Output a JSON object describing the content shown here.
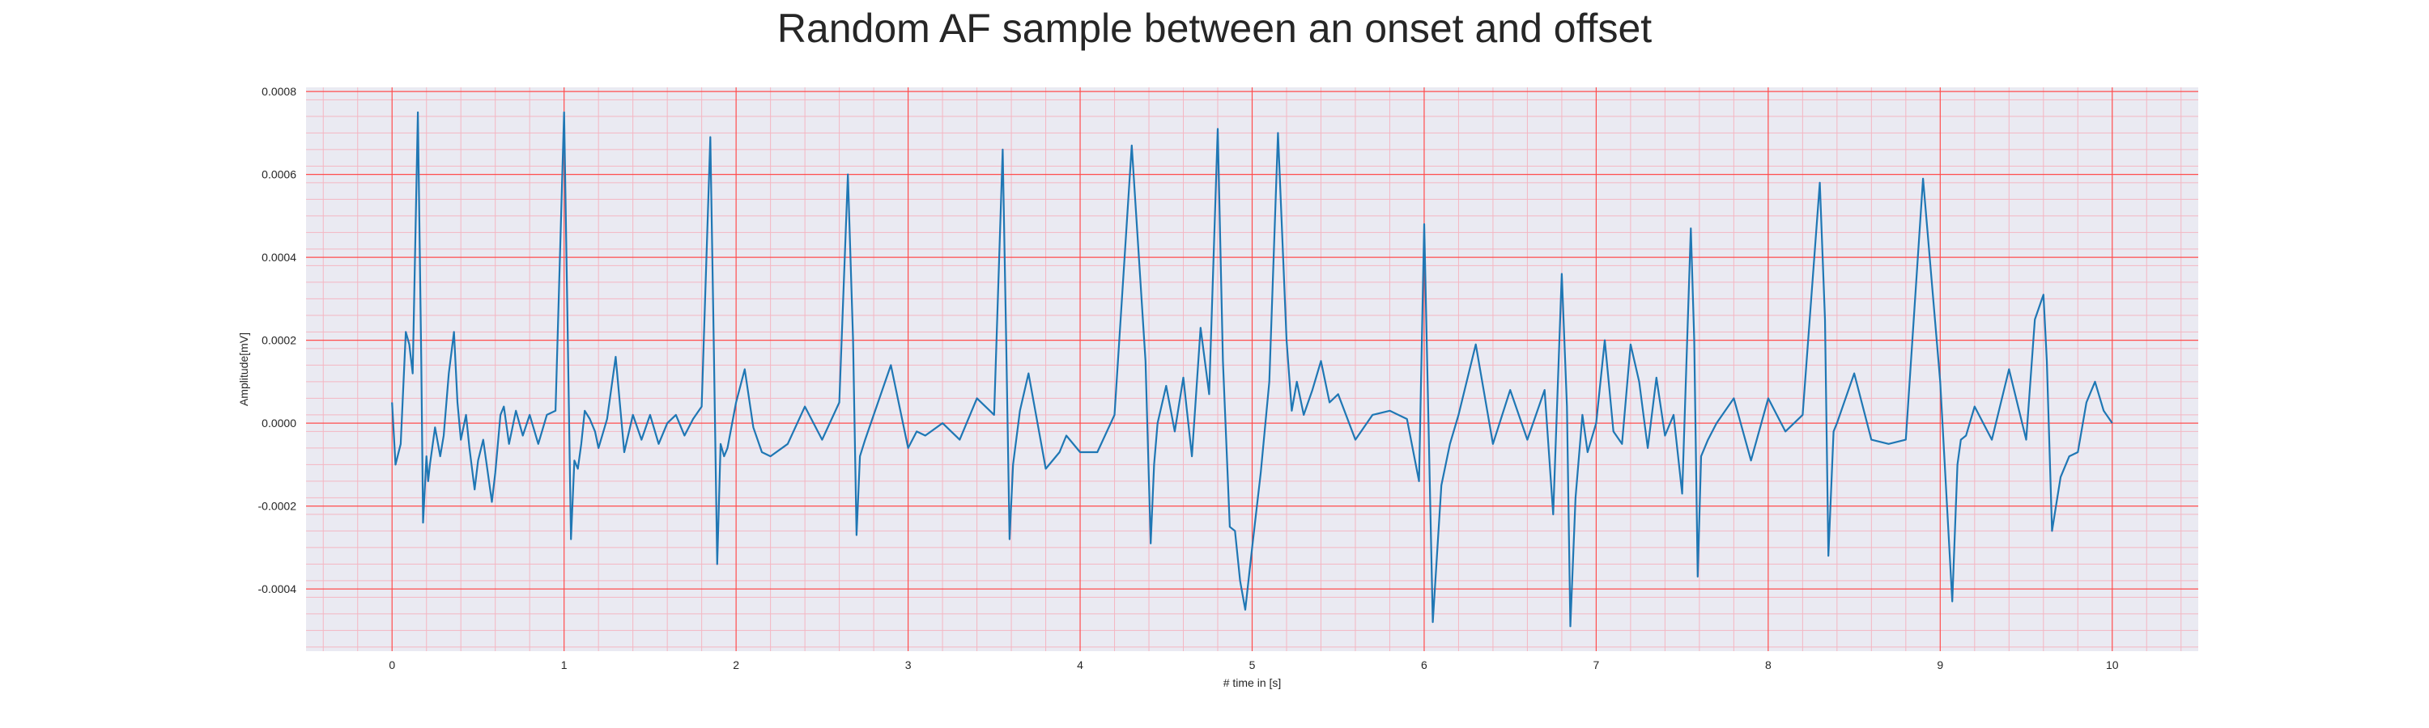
{
  "chart_data": {
    "type": "line",
    "title": "Random AF sample between an onset and offset",
    "xlabel": "# time in [s]",
    "ylabel": "Amplitude[mV]",
    "xlim": [
      -0.5,
      10.5
    ],
    "ylim": [
      -0.00055,
      0.00081
    ],
    "x_ticks": [
      0,
      1,
      2,
      3,
      4,
      5,
      6,
      7,
      8,
      9,
      10
    ],
    "x_tick_labels": [
      "0",
      "1",
      "2",
      "3",
      "4",
      "5",
      "6",
      "7",
      "8",
      "9",
      "10"
    ],
    "y_ticks": [
      -0.0004,
      -0.0002,
      0.0,
      0.0002,
      0.0004,
      0.0006,
      0.0008
    ],
    "y_tick_labels": [
      "-0.0004",
      "-0.0002",
      "0.0000",
      "0.0002",
      "0.0004",
      "0.0006",
      "0.0008"
    ],
    "grid": true,
    "background_color": "#eaeaf2",
    "major_grid_color": "#ff4d4d",
    "minor_grid_color": "#f4b6c2",
    "line_color": "#1f77b4",
    "series": [
      {
        "x": [
          0,
          0.02,
          0.05,
          0.08,
          0.1,
          0.12,
          0.15,
          0.17,
          0.18,
          0.2,
          0.21,
          0.22,
          0.25,
          0.28,
          0.3,
          0.33,
          0.36,
          0.38,
          0.4,
          0.43,
          0.45,
          0.48,
          0.5,
          0.53,
          0.55,
          0.58,
          0.6,
          0.63,
          0.65,
          0.68,
          0.72,
          0.76,
          0.8,
          0.85,
          0.9,
          0.95,
          1.0,
          1.02,
          1.04,
          1.06,
          1.08,
          1.1,
          1.12,
          1.15,
          1.18,
          1.2,
          1.25,
          1.3,
          1.35,
          1.4,
          1.45,
          1.5,
          1.55,
          1.6,
          1.65,
          1.7,
          1.75,
          1.8,
          1.85,
          1.87,
          1.89,
          1.91,
          1.93,
          1.95,
          2.0,
          2.05,
          2.1,
          2.15,
          2.2,
          2.3,
          2.4,
          2.5,
          2.6,
          2.65,
          2.68,
          2.7,
          2.72,
          2.75,
          2.8,
          2.9,
          3.0,
          3.05,
          3.1,
          3.2,
          3.3,
          3.4,
          3.5,
          3.55,
          3.57,
          3.59,
          3.61,
          3.65,
          3.7,
          3.8,
          3.88,
          3.92,
          4.0,
          4.1,
          4.2,
          4.3,
          4.38,
          4.41,
          4.43,
          4.45,
          4.5,
          4.55,
          4.6,
          4.65,
          4.7,
          4.75,
          4.8,
          4.83,
          4.87,
          4.9,
          4.93,
          4.96,
          5.0,
          5.05,
          5.1,
          5.15,
          5.2,
          5.23,
          5.26,
          5.3,
          5.35,
          5.4,
          5.45,
          5.5,
          5.6,
          5.7,
          5.8,
          5.9,
          5.97,
          6.0,
          6.02,
          6.05,
          6.1,
          6.15,
          6.2,
          6.3,
          6.4,
          6.5,
          6.6,
          6.7,
          6.75,
          6.8,
          6.83,
          6.85,
          6.88,
          6.92,
          6.95,
          7.0,
          7.05,
          7.1,
          7.15,
          7.2,
          7.25,
          7.3,
          7.35,
          7.4,
          7.45,
          7.5,
          7.55,
          7.57,
          7.59,
          7.61,
          7.65,
          7.7,
          7.8,
          7.9,
          8.0,
          8.1,
          8.2,
          8.3,
          8.33,
          8.35,
          8.38,
          8.4,
          8.5,
          8.6,
          8.7,
          8.8,
          8.9,
          9.0,
          9.07,
          9.1,
          9.12,
          9.15,
          9.2,
          9.3,
          9.4,
          9.5,
          9.55,
          9.6,
          9.62,
          9.65,
          9.7,
          9.75,
          9.8,
          9.85,
          9.9,
          9.95,
          10.0
        ],
        "y": [
          5e-05,
          -0.0001,
          -5e-05,
          0.00022,
          0.00019,
          0.00012,
          0.00075,
          0.00015,
          -0.00024,
          -8e-05,
          -0.00014,
          -0.0001,
          -1e-05,
          -8e-05,
          -3e-05,
          0.00012,
          0.00022,
          5e-05,
          -4e-05,
          2e-05,
          -6e-05,
          -0.00016,
          -9e-05,
          -4e-05,
          -0.0001,
          -0.00019,
          -0.00012,
          2e-05,
          4e-05,
          -5e-05,
          3e-05,
          -3e-05,
          2e-05,
          -5e-05,
          2e-05,
          3e-05,
          0.00075,
          0.00025,
          -0.00028,
          -9e-05,
          -0.00011,
          -5e-05,
          3e-05,
          1e-05,
          -2e-05,
          -6e-05,
          1e-05,
          0.00016,
          -7e-05,
          2e-05,
          -4e-05,
          2e-05,
          -5e-05,
          0.0,
          2e-05,
          -3e-05,
          1e-05,
          4e-05,
          0.00069,
          0.0002,
          -0.00034,
          -5e-05,
          -8e-05,
          -6e-05,
          5e-05,
          0.00013,
          -1e-05,
          -7e-05,
          -8e-05,
          -5e-05,
          4e-05,
          -4e-05,
          5e-05,
          0.0006,
          0.0002,
          -0.00027,
          -8e-05,
          -4e-05,
          2e-05,
          0.00014,
          -6e-05,
          -2e-05,
          -3e-05,
          0.0,
          -4e-05,
          6e-05,
          2e-05,
          0.00066,
          0.0002,
          -0.00028,
          -0.0001,
          3e-05,
          0.00012,
          -0.00011,
          -7e-05,
          -3e-05,
          -7e-05,
          -7e-05,
          2e-05,
          0.00067,
          0.00015,
          -0.00029,
          -0.0001,
          0.0,
          9e-05,
          -2e-05,
          0.00011,
          -8e-05,
          0.00023,
          7e-05,
          0.00071,
          0.00015,
          -0.00025,
          -0.00026,
          -0.00038,
          -0.00045,
          -0.0003,
          -0.00012,
          0.0001,
          0.0007,
          0.0002,
          3e-05,
          0.0001,
          2e-05,
          8e-05,
          0.00015,
          5e-05,
          7e-05,
          -4e-05,
          2e-05,
          3e-05,
          1e-05,
          -0.00014,
          0.00048,
          0.0001,
          -0.00048,
          -0.00015,
          -5e-05,
          2e-05,
          0.00019,
          -5e-05,
          8e-05,
          -4e-05,
          8e-05,
          -0.00022,
          0.00036,
          4e-05,
          -0.00049,
          -0.00018,
          2e-05,
          -7e-05,
          0.0,
          0.0002,
          -2e-05,
          -5e-05,
          0.00019,
          0.0001,
          -6e-05,
          0.00011,
          -3e-05,
          2e-05,
          -0.00017,
          0.00047,
          0.0002,
          -0.00037,
          -8e-05,
          -4e-05,
          0.0,
          6e-05,
          -9e-05,
          6e-05,
          -2e-05,
          2e-05,
          0.00058,
          0.00025,
          -0.00032,
          -2e-05,
          0.0,
          0.00012,
          -4e-05,
          -5e-05,
          -4e-05,
          0.00059,
          0.0001,
          -0.00043,
          -0.0001,
          -4e-05,
          -3e-05,
          4e-05,
          -4e-05,
          0.00013,
          -4e-05,
          0.00025,
          0.00031,
          0.00015,
          -0.00026,
          -0.00013,
          -8e-05,
          -7e-05,
          5e-05,
          0.0001,
          3e-05,
          0.0
        ]
      }
    ]
  }
}
